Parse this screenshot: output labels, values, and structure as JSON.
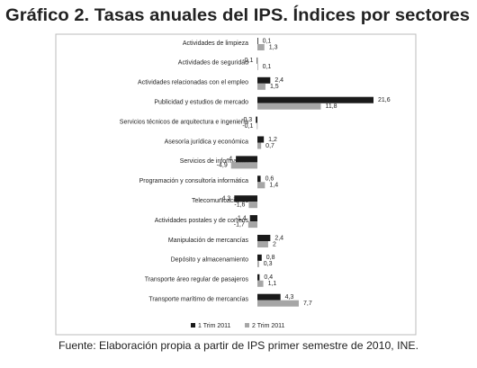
{
  "chart_data": {
    "type": "hbar",
    "title": "Gráfico 2. Tasas anuales del IPS. Índices por sectores",
    "source": "Fuente: Elaboración propia a partir de IPS primer semestre de 2010, INE.",
    "categories": [
      "Actividades de limpieza",
      "Actividades de seguridad",
      "Actividades relacionadas con el empleo",
      "Publicidad y estudios de mercado",
      "Servicios técnicos de arquitectura e ingeniería",
      "Asesoría jurídica y económica",
      "Servicios de información",
      "Programación y consultoría informática",
      "Telecomunicaciones",
      "Actividades postales y de correos",
      "Manipulación de mercancías",
      "Depósito y almacenamiento",
      "Transporte áreo regular de pasajeros",
      "Transporte marítimo de mercancías"
    ],
    "series": [
      {
        "name": "1 Trim 2011",
        "color": "#1a1a1a",
        "values": [
          0.1,
          -0.1,
          2.4,
          21.6,
          -0.3,
          1.2,
          -4,
          0.6,
          -4.3,
          -1.4,
          2.4,
          0.8,
          0.4,
          4.3
        ],
        "value_labels": [
          "0,1",
          "-0,1",
          "2,4",
          "21,6",
          "-0,3",
          "1,2",
          "-4",
          "0,6",
          "-4,3",
          "-1,4",
          "2,4",
          "0,8",
          "0,4",
          "4,3"
        ]
      },
      {
        "name": "2 Trim 2011",
        "color": "#a6a6a6",
        "values": [
          1.3,
          0.1,
          1.5,
          11.8,
          -0.1,
          0.7,
          -4.9,
          1.4,
          -1.6,
          -1.7,
          2,
          0.3,
          1.1,
          7.7
        ],
        "value_labels": [
          "1,3",
          "0,1",
          "1,5",
          "11,8",
          "-0,1",
          "0,7",
          "-4,9",
          "1,4",
          "-1,6",
          "-1,7",
          "2",
          "0,3",
          "1,1",
          "7,7"
        ]
      }
    ],
    "legend": "bottom"
  }
}
